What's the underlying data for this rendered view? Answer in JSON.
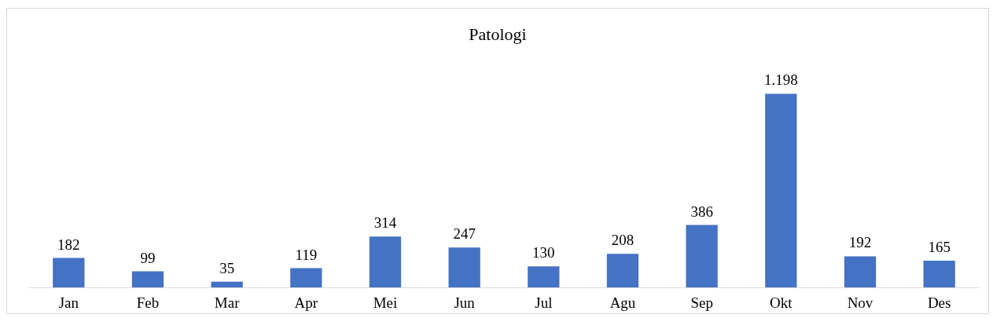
{
  "chart_data": {
    "type": "bar",
    "title": "Patologi",
    "categories": [
      "Jan",
      "Feb",
      "Mar",
      "Apr",
      "Mei",
      "Jun",
      "Jul",
      "Agu",
      "Sep",
      "Okt",
      "Nov",
      "Des"
    ],
    "values": [
      182,
      99,
      35,
      119,
      314,
      247,
      130,
      208,
      386,
      1198,
      192,
      165
    ],
    "value_labels": [
      "182",
      "99",
      "35",
      "119",
      "314",
      "247",
      "130",
      "208",
      "386",
      "1.198",
      "192",
      "165"
    ],
    "color": "#4472c4",
    "grid": false
  }
}
